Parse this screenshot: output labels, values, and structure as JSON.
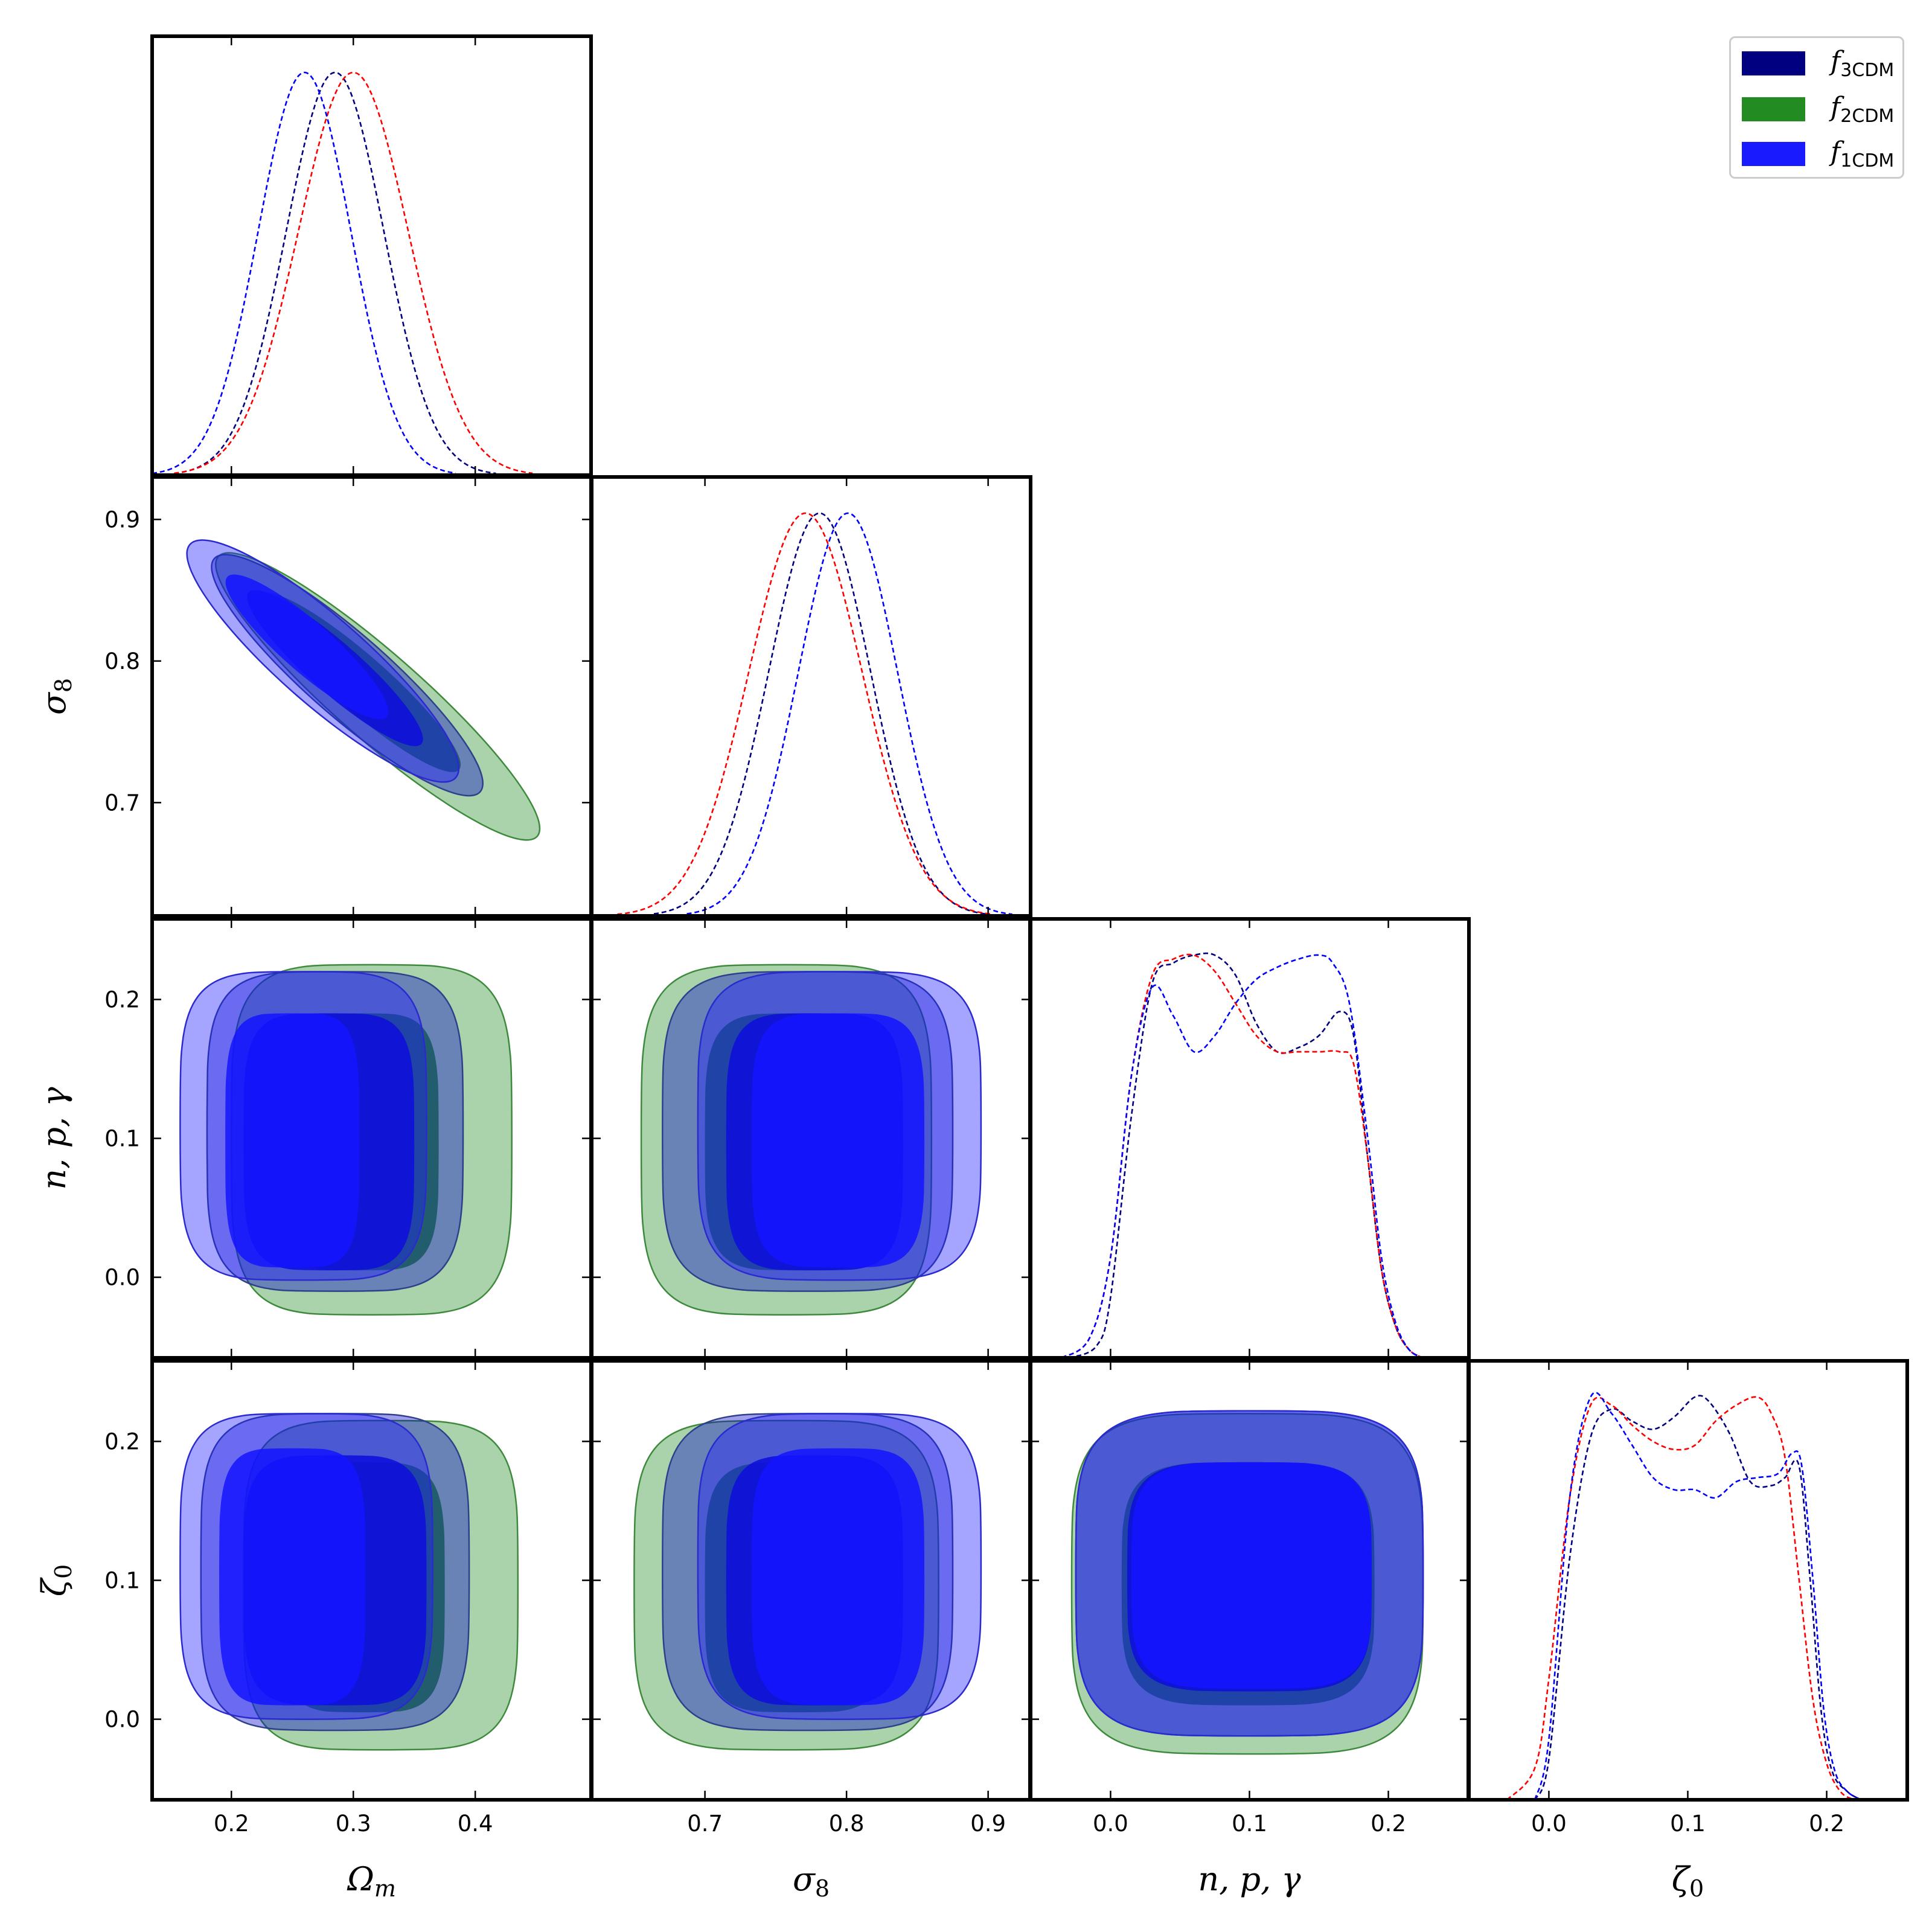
{
  "chart_data": {
    "type": "triangle-corner",
    "parameters": [
      {
        "key": "Om",
        "label": "Ω",
        "sub": "m",
        "range": [
          0.135,
          0.495
        ],
        "ticks": [
          0.2,
          0.3,
          0.4
        ]
      },
      {
        "key": "s8",
        "label": "σ",
        "sub": "8",
        "range": [
          0.62,
          0.93
        ],
        "ticks": [
          0.7,
          0.8,
          0.9
        ]
      },
      {
        "key": "npg",
        "label": "n, p, γ",
        "sub": "",
        "range": [
          -0.058,
          0.258
        ],
        "ticks": [
          0.0,
          0.1,
          0.2
        ]
      },
      {
        "key": "z0",
        "label": "ζ",
        "sub": "0",
        "range": [
          -0.058,
          0.258
        ],
        "ticks": [
          0.0,
          0.1,
          0.2
        ]
      }
    ],
    "legend": [
      {
        "name": "f",
        "sub": "3CDM",
        "fill": "#000080",
        "edge": "#000080"
      },
      {
        "name": "f",
        "sub": "2CDM",
        "fill": "#228b22",
        "edge": "#228b22"
      },
      {
        "name": "f",
        "sub": "1CDM",
        "fill": "#1a1aff",
        "edge": "#1a1aff"
      }
    ],
    "legend_placement": "top-right",
    "line_colors": {
      "f3CDM": "#000080",
      "f2CDM": "#ff0000",
      "f1CDM": "#0000ff"
    },
    "contour_fills": {
      "f3CDM": {
        "outer": "rgba(0,0,200,0.38)",
        "inner": "rgba(0,0,200,0.85)",
        "edge": "#303f8c"
      },
      "f2CDM": {
        "outer": "rgba(34,139,34,0.38)",
        "inner": "rgba(34,139,34,0.85)",
        "edge": "#3d8a3d"
      },
      "f1CDM": {
        "outer": "rgba(30,30,255,0.40)",
        "inner": "rgba(20,20,255,0.85)",
        "edge": "#2a2acf"
      }
    },
    "marginals": {
      "Om": [
        {
          "series": "f3CDM",
          "type": "gaussian",
          "mean": 0.285,
          "sd": 0.04
        },
        {
          "series": "f2CDM",
          "type": "gaussian",
          "mean": 0.3,
          "sd": 0.045
        },
        {
          "series": "f1CDM",
          "type": "gaussian",
          "mean": 0.26,
          "sd": 0.038
        }
      ],
      "s8": [
        {
          "series": "f3CDM",
          "type": "gaussian",
          "mean": 0.781,
          "sd": 0.036
        },
        {
          "series": "f2CDM",
          "type": "gaussian",
          "mean": 0.771,
          "sd": 0.04
        },
        {
          "series": "f1CDM",
          "type": "gaussian",
          "mean": 0.801,
          "sd": 0.035
        }
      ],
      "npg": [
        {
          "series": "f3CDM",
          "type": "points",
          "x": [
            -0.03,
            -0.01,
            0.0,
            0.015,
            0.03,
            0.045,
            0.06,
            0.075,
            0.09,
            0.105,
            0.12,
            0.135,
            0.15,
            0.165,
            0.175,
            0.185,
            0.195,
            0.205,
            0.215,
            0.225
          ],
          "y": [
            0.0,
            0.03,
            0.15,
            0.6,
            0.93,
            0.98,
            1.0,
            1.0,
            0.95,
            0.83,
            0.76,
            0.77,
            0.8,
            0.86,
            0.8,
            0.5,
            0.22,
            0.08,
            0.02,
            0.0
          ]
        },
        {
          "series": "f2CDM",
          "type": "points",
          "x": [
            -0.035,
            -0.015,
            0.0,
            0.015,
            0.03,
            0.045,
            0.06,
            0.075,
            0.09,
            0.105,
            0.12,
            0.135,
            0.15,
            0.165,
            0.175,
            0.185,
            0.195,
            0.205,
            0.215,
            0.225
          ],
          "y": [
            0.0,
            0.05,
            0.25,
            0.7,
            0.95,
            0.99,
            1.0,
            0.96,
            0.88,
            0.8,
            0.76,
            0.76,
            0.76,
            0.76,
            0.73,
            0.5,
            0.22,
            0.08,
            0.02,
            0.0
          ]
        },
        {
          "series": "f1CDM",
          "type": "points",
          "x": [
            -0.035,
            -0.015,
            0.0,
            0.015,
            0.03,
            0.045,
            0.06,
            0.075,
            0.09,
            0.105,
            0.12,
            0.135,
            0.15,
            0.16,
            0.172,
            0.185,
            0.195,
            0.205,
            0.215,
            0.225
          ],
          "y": [
            0.0,
            0.05,
            0.25,
            0.7,
            0.92,
            0.85,
            0.76,
            0.8,
            0.88,
            0.94,
            0.97,
            0.99,
            1.0,
            0.98,
            0.88,
            0.55,
            0.25,
            0.09,
            0.02,
            0.0
          ]
        }
      ],
      "z0": [
        {
          "series": "f3CDM",
          "type": "points",
          "x": [
            -0.01,
            0.0,
            0.015,
            0.03,
            0.045,
            0.06,
            0.075,
            0.09,
            0.105,
            0.115,
            0.13,
            0.145,
            0.16,
            0.17,
            0.18,
            0.188,
            0.196,
            0.204,
            0.215,
            0.225
          ],
          "y": [
            0.0,
            0.1,
            0.6,
            0.9,
            0.97,
            0.94,
            0.92,
            0.95,
            1.0,
            0.99,
            0.91,
            0.79,
            0.78,
            0.8,
            0.83,
            0.55,
            0.22,
            0.07,
            0.02,
            0.0
          ]
        },
        {
          "series": "f2CDM",
          "type": "points",
          "x": [
            -0.03,
            -0.01,
            0.0,
            0.015,
            0.03,
            0.045,
            0.06,
            0.075,
            0.09,
            0.105,
            0.12,
            0.135,
            0.15,
            0.16,
            0.17,
            0.18,
            0.19,
            0.2,
            0.21,
            0.22
          ],
          "y": [
            0.0,
            0.08,
            0.3,
            0.75,
            0.98,
            0.98,
            0.93,
            0.89,
            0.87,
            0.88,
            0.94,
            0.98,
            1.0,
            0.96,
            0.85,
            0.55,
            0.25,
            0.09,
            0.02,
            0.0
          ]
        },
        {
          "series": "f1CDM",
          "type": "points",
          "x": [
            -0.01,
            0.0,
            0.015,
            0.03,
            0.045,
            0.06,
            0.075,
            0.09,
            0.105,
            0.12,
            0.135,
            0.15,
            0.165,
            0.175,
            0.182,
            0.19,
            0.198,
            0.206,
            0.215,
            0.225
          ],
          "y": [
            0.0,
            0.15,
            0.75,
            1.0,
            0.96,
            0.88,
            0.8,
            0.77,
            0.77,
            0.75,
            0.79,
            0.8,
            0.81,
            0.86,
            0.83,
            0.55,
            0.22,
            0.07,
            0.02,
            0.0
          ]
        }
      ]
    },
    "contours_2d": [
      {
        "x": "Om",
        "y": "s8",
        "regions": [
          {
            "series": "f2CDM",
            "level": "95",
            "cx": 0.32,
            "cy": 0.775,
            "sx": 0.12,
            "sy": 0.095,
            "ex": 0.32,
            "ey": 0.775,
            "rot": -0.9,
            "r": 0.1
          },
          {
            "series": "f2CDM",
            "level": "68",
            "cx": 0.305,
            "cy": 0.785,
            "sx": 0.075,
            "sy": 0.06,
            "ex": 0.305,
            "ey": 0.785,
            "rot": -0.9,
            "r": 0.05
          },
          {
            "series": "f3CDM",
            "level": "95",
            "cx": 0.295,
            "cy": 0.79,
            "sx": 0.1,
            "sy": 0.09,
            "ex": 0.295,
            "ey": 0.79,
            "rot": -0.9,
            "r": 0.1
          },
          {
            "series": "f3CDM",
            "level": "68",
            "cx": 0.285,
            "cy": 0.795,
            "sx": 0.065,
            "sy": 0.055,
            "ex": 0.285,
            "ey": 0.795,
            "rot": -0.9,
            "r": 0.05
          },
          {
            "series": "f1CDM",
            "level": "95",
            "cx": 0.275,
            "cy": 0.8,
            "sx": 0.1,
            "sy": 0.095,
            "ex": 0.275,
            "ey": 0.8,
            "rot": -0.9,
            "r": 0.1
          },
          {
            "series": "f1CDM",
            "level": "68",
            "cx": 0.262,
            "cy": 0.81,
            "sx": 0.06,
            "sy": 0.055,
            "ex": 0.262,
            "ey": 0.81,
            "rot": -0.9,
            "r": 0.05
          }
        ]
      },
      {
        "x": "Om",
        "y": "npg",
        "regions": [
          {
            "series": "f2CDM",
            "level": "95",
            "x0": 0.2,
            "x1": 0.43,
            "y0": -0.027,
            "y1": 0.225
          },
          {
            "series": "f2CDM",
            "level": "68",
            "x0": 0.24,
            "x1": 0.37,
            "y0": 0.005,
            "y1": 0.19
          },
          {
            "series": "f3CDM",
            "level": "95",
            "x0": 0.18,
            "x1": 0.39,
            "y0": -0.01,
            "y1": 0.22
          },
          {
            "series": "f3CDM",
            "level": "68",
            "x0": 0.21,
            "x1": 0.35,
            "y0": 0.005,
            "y1": 0.19
          },
          {
            "series": "f1CDM",
            "level": "95",
            "x0": 0.158,
            "x1": 0.36,
            "y0": -0.002,
            "y1": 0.22
          },
          {
            "series": "f1CDM",
            "level": "68",
            "x0": 0.195,
            "x1": 0.305,
            "y0": 0.007,
            "y1": 0.19
          }
        ]
      },
      {
        "x": "s8",
        "y": "npg",
        "regions": [
          {
            "series": "f2CDM",
            "level": "95",
            "x0": 0.655,
            "x1": 0.86,
            "y0": -0.027,
            "y1": 0.225
          },
          {
            "series": "f2CDM",
            "level": "68",
            "x0": 0.7,
            "x1": 0.83,
            "y0": 0.005,
            "y1": 0.19
          },
          {
            "series": "f3CDM",
            "level": "95",
            "x0": 0.67,
            "x1": 0.875,
            "y0": -0.01,
            "y1": 0.22
          },
          {
            "series": "f3CDM",
            "level": "68",
            "x0": 0.715,
            "x1": 0.84,
            "y0": 0.005,
            "y1": 0.19
          },
          {
            "series": "f1CDM",
            "level": "95",
            "x0": 0.695,
            "x1": 0.895,
            "y0": -0.002,
            "y1": 0.22
          },
          {
            "series": "f1CDM",
            "level": "68",
            "x0": 0.733,
            "x1": 0.855,
            "y0": 0.007,
            "y1": 0.19
          }
        ]
      },
      {
        "x": "Om",
        "y": "z0",
        "regions": [
          {
            "series": "f2CDM",
            "level": "95",
            "x0": 0.21,
            "x1": 0.435,
            "y0": -0.022,
            "y1": 0.215
          },
          {
            "series": "f2CDM",
            "level": "68",
            "x0": 0.24,
            "x1": 0.375,
            "y0": 0.005,
            "y1": 0.185
          },
          {
            "series": "f3CDM",
            "level": "95",
            "x0": 0.175,
            "x1": 0.395,
            "y0": -0.008,
            "y1": 0.22
          },
          {
            "series": "f3CDM",
            "level": "68",
            "x0": 0.21,
            "x1": 0.36,
            "y0": 0.01,
            "y1": 0.19
          },
          {
            "series": "f1CDM",
            "level": "95",
            "x0": 0.158,
            "x1": 0.365,
            "y0": 0.0,
            "y1": 0.22
          },
          {
            "series": "f1CDM",
            "level": "68",
            "x0": 0.19,
            "x1": 0.31,
            "y0": 0.01,
            "y1": 0.195
          }
        ]
      },
      {
        "x": "s8",
        "y": "z0",
        "regions": [
          {
            "series": "f2CDM",
            "level": "95",
            "x0": 0.65,
            "x1": 0.865,
            "y0": -0.022,
            "y1": 0.215
          },
          {
            "series": "f2CDM",
            "level": "68",
            "x0": 0.7,
            "x1": 0.83,
            "y0": 0.005,
            "y1": 0.185
          },
          {
            "series": "f3CDM",
            "level": "95",
            "x0": 0.67,
            "x1": 0.875,
            "y0": -0.008,
            "y1": 0.22
          },
          {
            "series": "f3CDM",
            "level": "68",
            "x0": 0.715,
            "x1": 0.84,
            "y0": 0.01,
            "y1": 0.19
          },
          {
            "series": "f1CDM",
            "level": "95",
            "x0": 0.695,
            "x1": 0.895,
            "y0": 0.0,
            "y1": 0.22
          },
          {
            "series": "f1CDM",
            "level": "68",
            "x0": 0.733,
            "x1": 0.855,
            "y0": 0.01,
            "y1": 0.195
          }
        ]
      },
      {
        "x": "npg",
        "y": "z0",
        "regions": [
          {
            "series": "f2CDM",
            "level": "95",
            "x0": -0.028,
            "x1": 0.225,
            "y0": -0.025,
            "y1": 0.22
          },
          {
            "series": "f2CDM",
            "level": "68",
            "x0": 0.008,
            "x1": 0.19,
            "y0": 0.01,
            "y1": 0.185
          },
          {
            "series": "f3CDM",
            "level": "95",
            "x0": -0.025,
            "x1": 0.225,
            "y0": -0.012,
            "y1": 0.222
          },
          {
            "series": "f3CDM",
            "level": "68",
            "x0": 0.012,
            "x1": 0.188,
            "y0": 0.02,
            "y1": 0.185
          },
          {
            "series": "f1CDM",
            "level": "95",
            "x0": -0.025,
            "x1": 0.225,
            "y0": -0.012,
            "y1": 0.222
          },
          {
            "series": "f1CDM",
            "level": "68",
            "x0": 0.015,
            "x1": 0.188,
            "y0": 0.022,
            "y1": 0.185
          }
        ]
      }
    ]
  }
}
